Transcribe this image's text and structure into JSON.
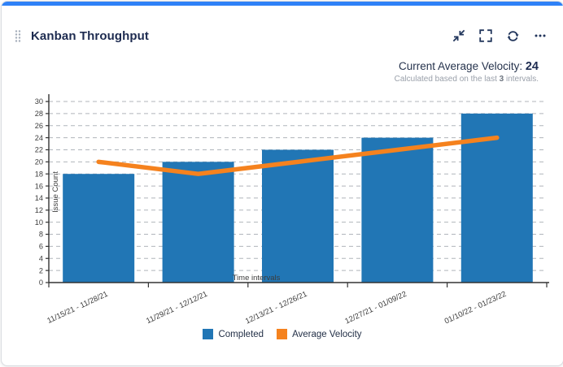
{
  "header": {
    "title": "Kanban Throughput",
    "icons": [
      "drag-handle",
      "collapse",
      "fullscreen",
      "refresh",
      "more-options"
    ]
  },
  "velocity": {
    "label": "Current Average Velocity: ",
    "value": "24",
    "subtitle_prefix": "Calculated based on the last ",
    "subtitle_bold": "3",
    "subtitle_suffix": " intervals."
  },
  "chart_data": {
    "type": "bar",
    "categories": [
      "11/15/21 - 11/28/21",
      "11/29/21 - 12/12/21",
      "12/13/21 - 12/26/21",
      "12/27/21 - 01/09/22",
      "01/10/22 - 01/23/22"
    ],
    "series": [
      {
        "name": "Completed",
        "type": "bar",
        "color": "#2176b5",
        "values": [
          18,
          20,
          22,
          24,
          28
        ]
      },
      {
        "name": "Average Velocity",
        "type": "line",
        "color": "#f5821e",
        "values": [
          20,
          18,
          20,
          22,
          24
        ]
      }
    ],
    "title": "Kanban Throughput",
    "xlabel": "Time intervals",
    "ylabel": "Issue Count",
    "ylim": [
      0,
      30
    ],
    "ytick_step": 2,
    "grid": "horizontal-dashed",
    "legend_position": "bottom"
  },
  "colors": {
    "accent": "#2e81f7",
    "title_text": "#1d2b50",
    "bar": "#2176b5",
    "line": "#f5821e",
    "axis": "#333333",
    "gridline": "#b0b5bb",
    "subtitle_gray": "#9aa0aa"
  }
}
